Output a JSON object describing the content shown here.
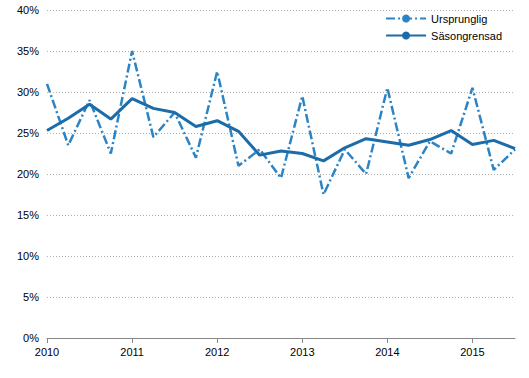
{
  "chart_data": {
    "type": "line",
    "categories": [
      "2010",
      null,
      null,
      null,
      "2011",
      null,
      null,
      null,
      "2012",
      null,
      null,
      null,
      "2013",
      null,
      null,
      null,
      "2014",
      null,
      null,
      null,
      "2015",
      null,
      null
    ],
    "series": [
      {
        "name": "Ursprunglig",
        "color": "#2b84c6",
        "line_style": "dashdot",
        "values": [
          31,
          23.5,
          29,
          22.5,
          35,
          24.5,
          27.5,
          22,
          32.5,
          21,
          23,
          19.5,
          29.5,
          17.5,
          23,
          20,
          30.5,
          19.5,
          24,
          22.5,
          30.5,
          20.5,
          23
        ]
      },
      {
        "name": "Säsongrensad",
        "color": "#1b6ca8",
        "line_style": "solid",
        "values": [
          25.3,
          26.8,
          28.5,
          26.7,
          29.2,
          28,
          27.5,
          25.8,
          26.5,
          25.2,
          22.3,
          22.8,
          22.5,
          21.6,
          23.2,
          24.3,
          23.9,
          23.5,
          24.2,
          25.3,
          23.6,
          24.1,
          23.1
        ]
      }
    ],
    "ylim": [
      0,
      40
    ],
    "yticks": [
      {
        "value": 0,
        "label": "0%"
      },
      {
        "value": 5,
        "label": "5%"
      },
      {
        "value": 10,
        "label": "10%"
      },
      {
        "value": 15,
        "label": "15%"
      },
      {
        "value": 20,
        "label": "20%"
      },
      {
        "value": 25,
        "label": "25%"
      },
      {
        "value": 30,
        "label": "30%"
      },
      {
        "value": 35,
        "label": "35%"
      },
      {
        "value": 40,
        "label": "40%"
      }
    ],
    "grid": true,
    "legend": "upper right"
  }
}
